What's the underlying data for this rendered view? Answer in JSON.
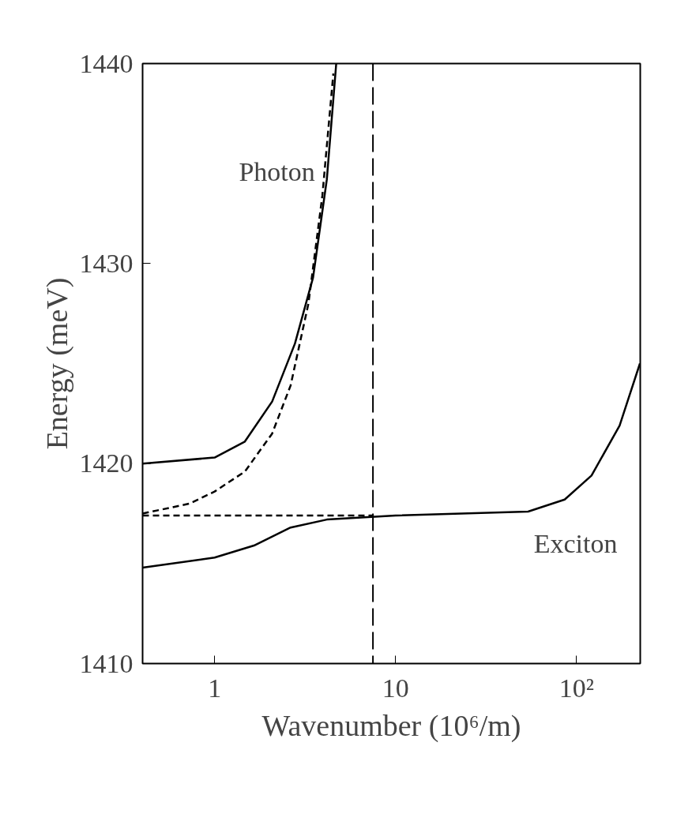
{
  "chart_data": {
    "type": "line",
    "xlabel": "Wavenumber (10⁶/m)",
    "ylabel": "Energy (meV)",
    "log": "x",
    "xlim": [
      0.4,
      225
    ],
    "ylim": [
      1410,
      1440
    ],
    "xticks": [
      1,
      10,
      {
        "value": 100,
        "label": "10²"
      }
    ],
    "yticks": [
      1410,
      1420,
      1430,
      1440
    ],
    "grid": false,
    "marker": "none",
    "series": [
      {
        "color": "#000000",
        "line_style": "solid",
        "x": [
          0.4,
          1,
          1.47,
          2.08,
          2.78,
          3.5,
          4.17,
          4.7
        ],
        "values": [
          1420.0,
          1420.3,
          1421.1,
          1423.1,
          1426,
          1429.3,
          1434.2,
          1440
        ]
      },
      {
        "color": "#000000",
        "line_style": "dashed",
        "x": [
          0.4,
          0.73,
          1,
          1.47,
          2.08,
          2.63,
          3.3,
          3.94,
          4.53
        ],
        "values": [
          1417.5,
          1418,
          1418.6,
          1419.6,
          1421.5,
          1423.9,
          1428,
          1433.4,
          1439.5
        ]
      },
      {
        "color": "#000000",
        "line_style": "dashed",
        "x": [
          0.4,
          7.5
        ],
        "values": [
          1417.4,
          1417.4
        ]
      },
      {
        "color": "#000000",
        "line_style": "solid",
        "x": [
          0.4,
          1,
          1.65,
          2.63,
          4.17,
          10,
          54,
          86,
          121,
          173,
          224
        ],
        "values": [
          1414.8,
          1415.3,
          1415.9,
          1416.8,
          1417.2,
          1417.4,
          1417.6,
          1418.2,
          1419.4,
          1421.9,
          1425
        ]
      }
    ],
    "ref_lines": [
      {
        "axis": "x",
        "value": 7.5,
        "line_style": "dashed",
        "color": "#000000"
      }
    ],
    "annotations": [
      "Photon",
      "Exciton"
    ]
  }
}
